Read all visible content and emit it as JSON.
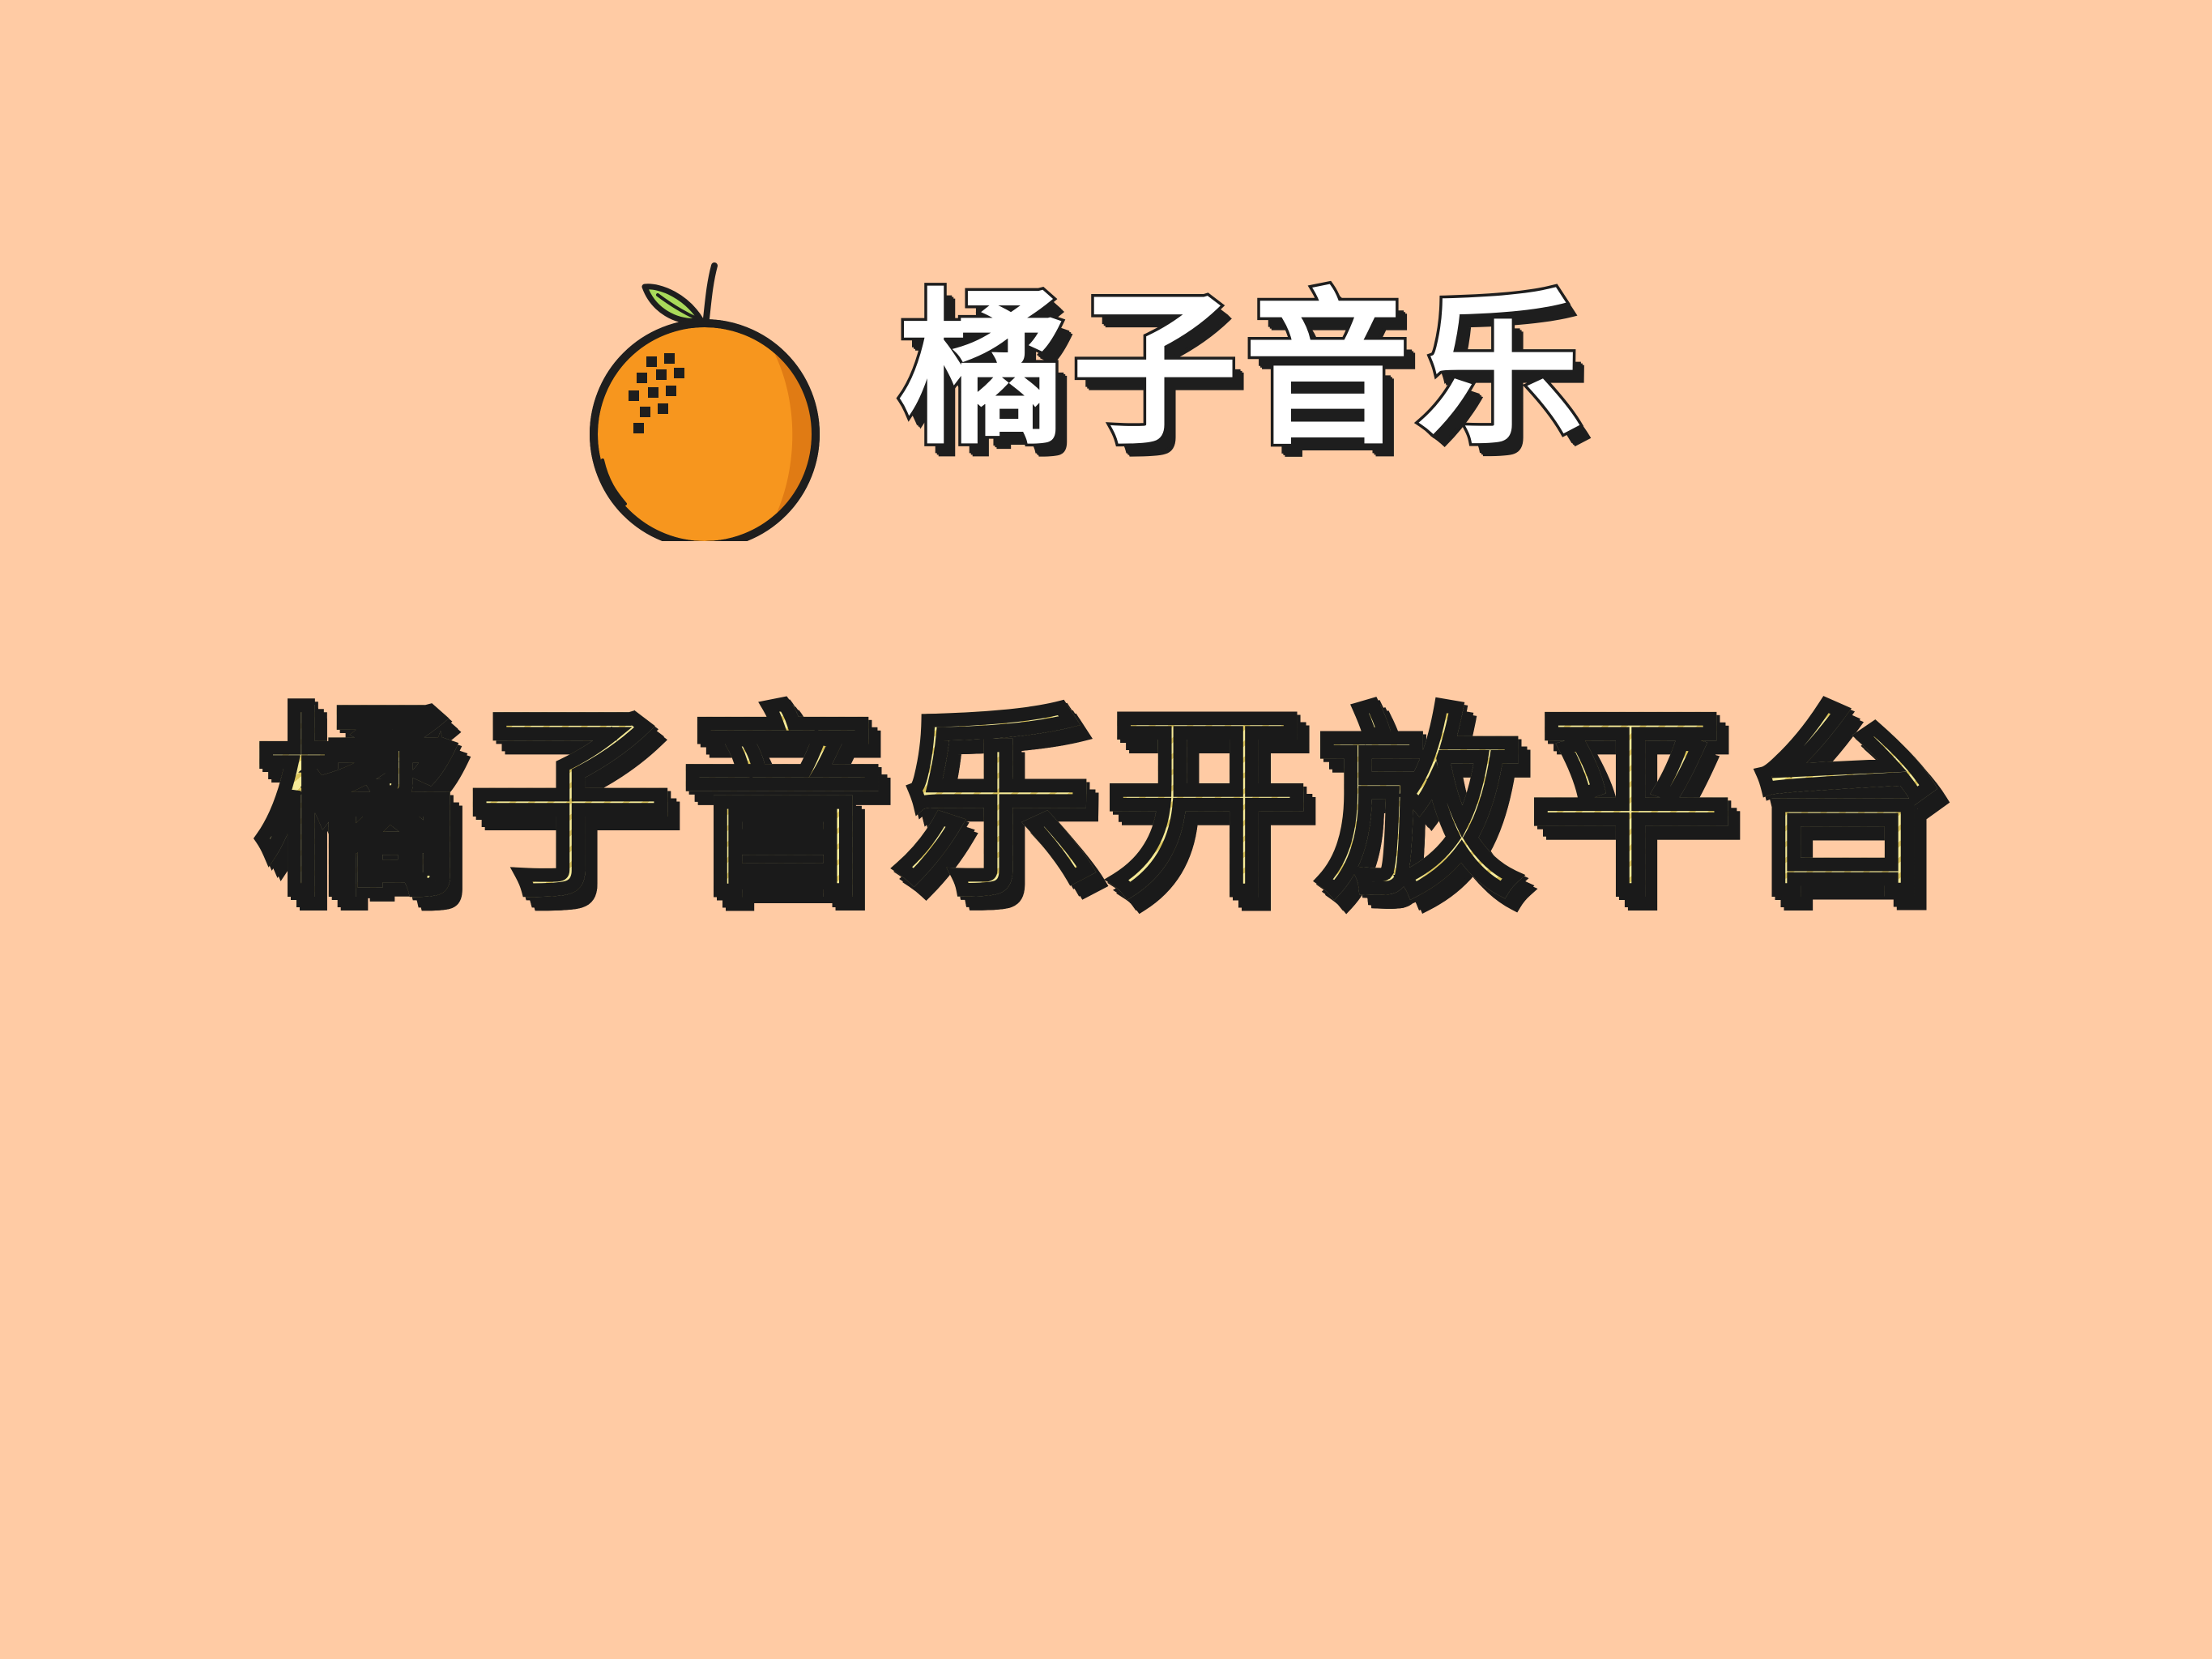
{
  "brand": {
    "name": "橘子音乐",
    "icon": "orange-fruit-icon"
  },
  "headline": {
    "text": "橘子音乐开放平台"
  },
  "colors": {
    "background": "#FFCBA4",
    "orange": "#F7961E",
    "orange_shade": "#E07B14",
    "leaf": "#A9DA5A",
    "outline": "#1E1E1E",
    "headline_fill": "#F2E283"
  }
}
